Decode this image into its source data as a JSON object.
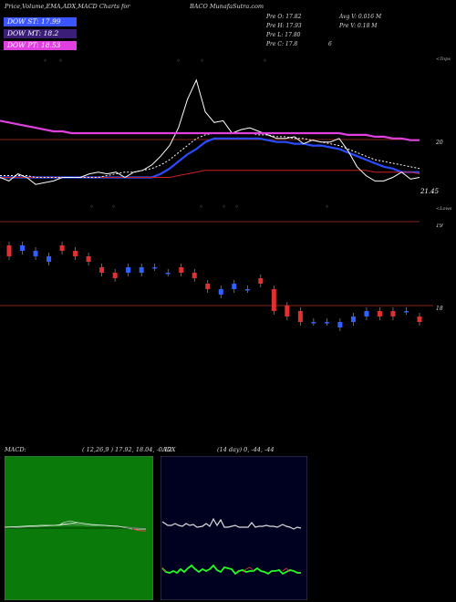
{
  "header": {
    "left": "Price,Volume,EMA,ADX,MACD Charts for",
    "center": "BACO MunafaSutra.com"
  },
  "legend": [
    {
      "label": "DOW ST: 17.99",
      "color": "#3a55ff"
    },
    {
      "label": "DOW MT: 18.2",
      "color": "#3a1e78"
    },
    {
      "label": "DOW PT: 18.53",
      "color": "#e040e0"
    }
  ],
  "stats": {
    "prev_open": "Pre  O: 17.82",
    "prev_high": "Pre  H: 17.93",
    "prev_low": "Pre  L: 17.80",
    "prev_close": "Pre  C: 17.8",
    "prev_close_tail": "6",
    "avg_volume": "Avg V: 0.016  M",
    "prev_volume": "Pre  V: 0.18  M"
  },
  "chart_data": [
    {
      "type": "line",
      "title": "",
      "level_labels": [
        "20",
        "21.45"
      ],
      "corner_labels": [
        "<Tops",
        "<Lows"
      ],
      "series": [
        {
          "name": "",
          "color": "#2a4cff",
          "values": [
            17.6,
            17.6,
            17.6,
            17.6,
            17.6,
            17.6,
            17.6,
            17.6,
            17.6,
            17.6,
            17.6,
            17.6,
            17.6,
            17.6,
            17.6,
            17.6,
            17.6,
            17.6,
            17.8,
            18.1,
            18.5,
            18.9,
            19.2,
            19.6,
            19.8,
            19.8,
            19.8,
            19.8,
            19.8,
            19.8,
            19.7,
            19.6,
            19.6,
            19.5,
            19.5,
            19.4,
            19.4,
            19.3,
            19.2,
            19.0,
            18.8,
            18.6,
            18.4,
            18.2,
            18.1,
            17.9,
            17.9,
            17.9
          ]
        },
        {
          "name": "",
          "color": "#cc2020",
          "values": [
            17.6,
            17.6,
            17.6,
            17.6,
            17.6,
            17.6,
            17.6,
            17.6,
            17.6,
            17.6,
            17.6,
            17.6,
            17.6,
            17.6,
            17.6,
            17.6,
            17.6,
            17.6,
            17.6,
            17.6,
            17.7,
            17.8,
            17.9,
            18.0,
            18.0,
            18.0,
            18.0,
            18.0,
            18.0,
            18.0,
            18.0,
            18.0,
            18.0,
            18.0,
            18.0,
            18.0,
            18.0,
            18.0,
            18.0,
            18.0,
            18.0,
            18.0,
            17.9,
            17.9,
            17.9,
            17.9,
            17.9,
            17.8
          ]
        },
        {
          "name": "",
          "color": "#ffffff",
          "values": [
            17.6,
            17.4,
            17.8,
            17.6,
            17.2,
            17.3,
            17.4,
            17.6,
            17.6,
            17.6,
            17.8,
            17.9,
            17.8,
            17.9,
            17.6,
            17.9,
            18.0,
            18.3,
            18.8,
            19.4,
            20.4,
            22.0,
            23.1,
            21.3,
            20.7,
            20.8,
            20.1,
            20.3,
            20.4,
            20.2,
            20.0,
            19.8,
            19.8,
            19.9,
            19.5,
            19.7,
            19.6,
            19.6,
            19.8,
            19.1,
            18.2,
            17.7,
            17.4,
            17.4,
            17.6,
            17.9,
            17.5,
            17.6
          ]
        },
        {
          "name": "",
          "color": "#ffffff",
          "values": [
            17.7,
            17.7,
            17.7,
            17.7,
            17.6,
            17.6,
            17.6,
            17.6,
            17.6,
            17.6,
            17.6,
            17.6,
            17.7,
            17.8,
            17.9,
            17.9,
            18.0,
            18.1,
            18.3,
            18.6,
            19.0,
            19.4,
            19.8,
            20.0,
            20.1,
            20.1,
            20.1,
            20.1,
            20.1,
            20.0,
            20.0,
            19.9,
            19.9,
            19.8,
            19.8,
            19.7,
            19.6,
            19.5,
            19.4,
            19.2,
            19.0,
            18.8,
            18.6,
            18.5,
            18.4,
            18.3,
            18.2,
            18.1
          ]
        },
        {
          "name": "",
          "color": "#e040e0",
          "values": [
            20.8,
            20.7,
            20.6,
            20.5,
            20.4,
            20.3,
            20.2,
            20.2,
            20.1,
            20.1,
            20.1,
            20.1,
            20.1,
            20.1,
            20.1,
            20.1,
            20.1,
            20.1,
            20.1,
            20.1,
            20.1,
            20.1,
            20.1,
            20.1,
            20.1,
            20.1,
            20.1,
            20.1,
            20.1,
            20.1,
            20.1,
            20.1,
            20.1,
            20.1,
            20.1,
            20.1,
            20.1,
            20.1,
            20.1,
            20.0,
            20.0,
            20.0,
            19.9,
            19.9,
            19.8,
            19.8,
            19.7,
            19.7
          ]
        }
      ]
    },
    {
      "type": "candlestick",
      "title": "",
      "level_labels": [
        "19",
        "18"
      ],
      "candles": [
        {
          "o": 18.8,
          "c": 18.6
        },
        {
          "o": 18.7,
          "c": 18.8
        },
        {
          "o": 18.6,
          "c": 18.7
        },
        {
          "o": 18.5,
          "c": 18.6
        },
        {
          "o": 18.8,
          "c": 18.7
        },
        {
          "o": 18.7,
          "c": 18.6
        },
        {
          "o": 18.6,
          "c": 18.5
        },
        {
          "o": 18.4,
          "c": 18.3
        },
        {
          "o": 18.3,
          "c": 18.2
        },
        {
          "o": 18.3,
          "c": 18.4
        },
        {
          "o": 18.3,
          "c": 18.4
        },
        {
          "o": 18.4,
          "c": 18.4
        },
        {
          "o": 18.3,
          "c": 18.3
        },
        {
          "o": 18.4,
          "c": 18.3
        },
        {
          "o": 18.3,
          "c": 18.2
        },
        {
          "o": 18.1,
          "c": 18.0
        },
        {
          "o": 17.9,
          "c": 18.0
        },
        {
          "o": 18.0,
          "c": 18.1
        },
        {
          "o": 18.0,
          "c": 18.0
        },
        {
          "o": 18.2,
          "c": 18.1
        },
        {
          "o": 18.0,
          "c": 17.6
        },
        {
          "o": 17.7,
          "c": 17.5
        },
        {
          "o": 17.6,
          "c": 17.4
        },
        {
          "o": 17.4,
          "c": 17.4
        },
        {
          "o": 17.4,
          "c": 17.4
        },
        {
          "o": 17.3,
          "c": 17.4
        },
        {
          "o": 17.4,
          "c": 17.5
        },
        {
          "o": 17.5,
          "c": 17.6
        },
        {
          "o": 17.6,
          "c": 17.5
        },
        {
          "o": 17.6,
          "c": 17.5
        },
        {
          "o": 17.6,
          "c": 17.6
        },
        {
          "o": 17.5,
          "c": 17.4
        }
      ]
    },
    {
      "type": "line",
      "title": "MACD:",
      "subtitle": "( 12,26,9 ) 17.92,  18.04,  -0.12"
    },
    {
      "type": "line",
      "title": "ADX",
      "subtitle": "(14  day) 0,  -44, -44"
    }
  ]
}
